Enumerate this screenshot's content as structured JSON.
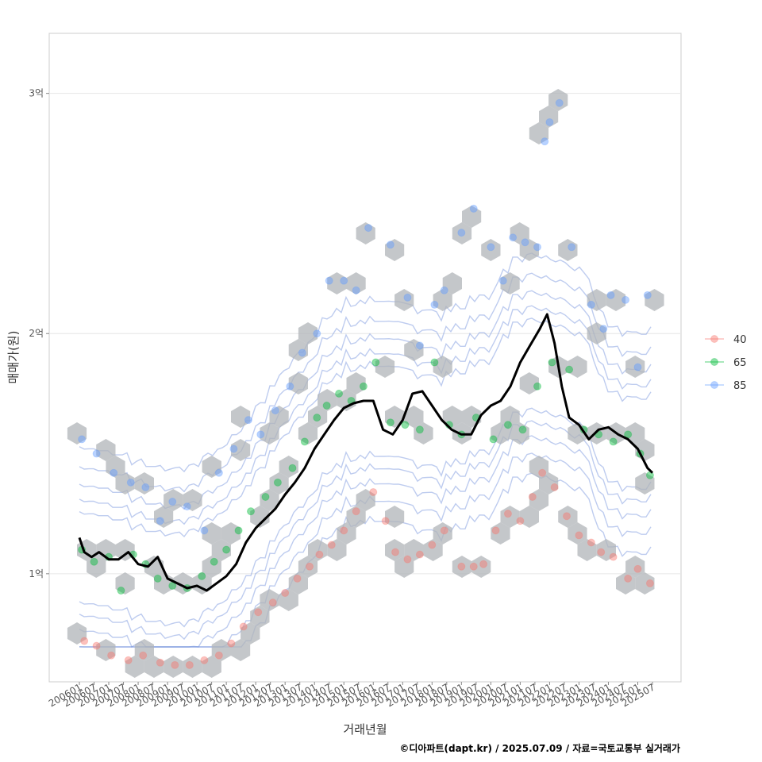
{
  "chart_data": {
    "type": "scatter",
    "xlabel": "거래년월",
    "ylabel": "매매가(원)",
    "caption": "©디아파트(dapt.kr) / 2025.07.09 / 자료=국토교통부 실거래가",
    "x_ticks": [
      "200601",
      "200607",
      "200701",
      "200707",
      "200801",
      "200807",
      "200901",
      "200907",
      "201001",
      "201007",
      "201101",
      "201107",
      "201201",
      "201207",
      "201301",
      "201307",
      "201401",
      "201407",
      "201501",
      "201507",
      "201601",
      "201607",
      "201701",
      "201707",
      "201801",
      "201807",
      "201901",
      "201907",
      "202001",
      "202007",
      "202101",
      "202107",
      "202201",
      "202207",
      "202301",
      "202307",
      "202401",
      "202407",
      "202501",
      "202507"
    ],
    "x_range": [
      "2006-01",
      "2025-07"
    ],
    "y_ticks": [
      {
        "value": 1.0,
        "label": "1억"
      },
      {
        "value": 2.0,
        "label": "2억"
      },
      {
        "value": 3.0,
        "label": "3억"
      }
    ],
    "ylim": [
      0.55,
      3.25
    ],
    "grid": true,
    "legend": {
      "position": "right",
      "entries": [
        {
          "name": "40",
          "color": "#F8766D"
        },
        {
          "name": "65",
          "color": "#00BA38"
        },
        {
          "name": "85",
          "color": "#619CFF"
        }
      ]
    },
    "hex_color": "#b0b4b8",
    "contour_color": "#6f8fdc",
    "line_color": "#000000",
    "series": [
      {
        "name": "40",
        "points": [
          [
            "2006-03",
            0.72
          ],
          [
            "2006-08",
            0.7
          ],
          [
            "2007-02",
            0.66
          ],
          [
            "2007-09",
            0.64
          ],
          [
            "2008-03",
            0.66
          ],
          [
            "2008-10",
            0.63
          ],
          [
            "2009-04",
            0.62
          ],
          [
            "2009-10",
            0.62
          ],
          [
            "2010-04",
            0.64
          ],
          [
            "2010-10",
            0.66
          ],
          [
            "2011-03",
            0.71
          ],
          [
            "2011-08",
            0.78
          ],
          [
            "2012-02",
            0.84
          ],
          [
            "2012-08",
            0.88
          ],
          [
            "2013-01",
            0.92
          ],
          [
            "2013-06",
            0.98
          ],
          [
            "2013-11",
            1.03
          ],
          [
            "2014-03",
            1.08
          ],
          [
            "2014-08",
            1.12
          ],
          [
            "2015-01",
            1.18
          ],
          [
            "2015-06",
            1.26
          ],
          [
            "2016-01",
            1.34
          ],
          [
            "2016-06",
            1.22
          ],
          [
            "2016-10",
            1.09
          ],
          [
            "2017-03",
            1.06
          ],
          [
            "2017-08",
            1.08
          ],
          [
            "2018-01",
            1.12
          ],
          [
            "2018-06",
            1.18
          ],
          [
            "2019-01",
            1.03
          ],
          [
            "2019-06",
            1.03
          ],
          [
            "2019-10",
            1.04
          ],
          [
            "2020-03",
            1.18
          ],
          [
            "2020-08",
            1.25
          ],
          [
            "2021-01",
            1.22
          ],
          [
            "2021-06",
            1.32
          ],
          [
            "2021-10",
            1.42
          ],
          [
            "2022-03",
            1.36
          ],
          [
            "2022-08",
            1.24
          ],
          [
            "2023-01",
            1.16
          ],
          [
            "2023-06",
            1.13
          ],
          [
            "2023-10",
            1.09
          ],
          [
            "2024-03",
            1.07
          ],
          [
            "2024-09",
            0.98
          ],
          [
            "2025-01",
            1.02
          ],
          [
            "2025-06",
            0.96
          ]
        ]
      },
      {
        "name": "65",
        "points": [
          [
            "2006-02",
            1.1
          ],
          [
            "2006-07",
            1.05
          ],
          [
            "2007-01",
            1.07
          ],
          [
            "2007-06",
            0.93
          ],
          [
            "2007-11",
            1.08
          ],
          [
            "2008-04",
            1.04
          ],
          [
            "2008-09",
            0.98
          ],
          [
            "2009-03",
            0.95
          ],
          [
            "2009-09",
            0.94
          ],
          [
            "2010-03",
            0.99
          ],
          [
            "2010-08",
            1.05
          ],
          [
            "2011-01",
            1.1
          ],
          [
            "2011-06",
            1.18
          ],
          [
            "2011-11",
            1.26
          ],
          [
            "2012-05",
            1.32
          ],
          [
            "2012-10",
            1.38
          ],
          [
            "2013-04",
            1.44
          ],
          [
            "2013-09",
            1.55
          ],
          [
            "2014-02",
            1.65
          ],
          [
            "2014-06",
            1.7
          ],
          [
            "2014-11",
            1.75
          ],
          [
            "2015-04",
            1.72
          ],
          [
            "2015-09",
            1.78
          ],
          [
            "2016-02",
            1.88
          ],
          [
            "2016-08",
            1.63
          ],
          [
            "2017-02",
            1.62
          ],
          [
            "2017-08",
            1.6
          ],
          [
            "2018-02",
            1.88
          ],
          [
            "2018-08",
            1.62
          ],
          [
            "2019-01",
            1.58
          ],
          [
            "2019-07",
            1.65
          ],
          [
            "2020-02",
            1.56
          ],
          [
            "2020-08",
            1.62
          ],
          [
            "2021-02",
            1.6
          ],
          [
            "2021-08",
            1.78
          ],
          [
            "2022-02",
            1.88
          ],
          [
            "2022-09",
            1.85
          ],
          [
            "2023-03",
            1.6
          ],
          [
            "2023-09",
            1.58
          ],
          [
            "2024-03",
            1.55
          ],
          [
            "2024-09",
            1.58
          ],
          [
            "2025-02",
            1.5
          ],
          [
            "2025-06",
            1.41
          ]
        ]
      },
      {
        "name": "85",
        "points": [
          [
            "2006-02",
            1.56
          ],
          [
            "2006-08",
            1.5
          ],
          [
            "2007-03",
            1.42
          ],
          [
            "2007-10",
            1.38
          ],
          [
            "2008-04",
            1.36
          ],
          [
            "2008-10",
            1.22
          ],
          [
            "2009-03",
            1.3
          ],
          [
            "2009-09",
            1.28
          ],
          [
            "2010-04",
            1.18
          ],
          [
            "2010-10",
            1.42
          ],
          [
            "2011-04",
            1.52
          ],
          [
            "2011-10",
            1.64
          ],
          [
            "2012-03",
            1.58
          ],
          [
            "2012-09",
            1.68
          ],
          [
            "2013-03",
            1.78
          ],
          [
            "2013-08",
            1.92
          ],
          [
            "2014-02",
            2.0
          ],
          [
            "2014-07",
            2.22
          ],
          [
            "2015-01",
            2.22
          ],
          [
            "2015-06",
            2.18
          ],
          [
            "2015-11",
            2.44
          ],
          [
            "2016-08",
            2.37
          ],
          [
            "2017-03",
            2.15
          ],
          [
            "2017-08",
            1.95
          ],
          [
            "2018-02",
            2.12
          ],
          [
            "2018-06",
            2.18
          ],
          [
            "2019-01",
            2.42
          ],
          [
            "2019-06",
            2.52
          ],
          [
            "2020-01",
            2.36
          ],
          [
            "2020-06",
            2.22
          ],
          [
            "2020-10",
            2.4
          ],
          [
            "2021-03",
            2.38
          ],
          [
            "2021-08",
            2.36
          ],
          [
            "2021-11",
            2.8
          ],
          [
            "2022-01",
            2.88
          ],
          [
            "2022-05",
            2.96
          ],
          [
            "2022-10",
            2.36
          ],
          [
            "2023-06",
            2.12
          ],
          [
            "2023-11",
            2.02
          ],
          [
            "2024-02",
            2.16
          ],
          [
            "2024-08",
            2.14
          ],
          [
            "2025-01",
            1.86
          ],
          [
            "2025-05",
            2.16
          ]
        ]
      },
      {
        "name": "median",
        "points": [
          [
            "2006-01",
            1.15
          ],
          [
            "2006-03",
            1.09
          ],
          [
            "2006-06",
            1.07
          ],
          [
            "2006-09",
            1.09
          ],
          [
            "2007-01",
            1.06
          ],
          [
            "2007-05",
            1.06
          ],
          [
            "2007-09",
            1.09
          ],
          [
            "2008-01",
            1.04
          ],
          [
            "2008-05",
            1.03
          ],
          [
            "2008-09",
            1.07
          ],
          [
            "2009-01",
            0.98
          ],
          [
            "2009-05",
            0.96
          ],
          [
            "2009-09",
            0.94
          ],
          [
            "2010-01",
            0.95
          ],
          [
            "2010-05",
            0.93
          ],
          [
            "2010-09",
            0.96
          ],
          [
            "2011-01",
            0.99
          ],
          [
            "2011-05",
            1.04
          ],
          [
            "2011-09",
            1.13
          ],
          [
            "2012-01",
            1.19
          ],
          [
            "2012-05",
            1.23
          ],
          [
            "2012-09",
            1.27
          ],
          [
            "2013-01",
            1.33
          ],
          [
            "2013-05",
            1.38
          ],
          [
            "2013-09",
            1.44
          ],
          [
            "2014-01",
            1.52
          ],
          [
            "2014-05",
            1.58
          ],
          [
            "2014-09",
            1.64
          ],
          [
            "2015-01",
            1.69
          ],
          [
            "2015-05",
            1.71
          ],
          [
            "2015-09",
            1.72
          ],
          [
            "2016-01",
            1.72
          ],
          [
            "2016-05",
            1.6
          ],
          [
            "2016-09",
            1.58
          ],
          [
            "2017-01",
            1.64
          ],
          [
            "2017-05",
            1.75
          ],
          [
            "2017-09",
            1.76
          ],
          [
            "2018-01",
            1.7
          ],
          [
            "2018-05",
            1.64
          ],
          [
            "2018-09",
            1.6
          ],
          [
            "2019-01",
            1.58
          ],
          [
            "2019-05",
            1.58
          ],
          [
            "2019-09",
            1.66
          ],
          [
            "2020-01",
            1.7
          ],
          [
            "2020-05",
            1.72
          ],
          [
            "2020-09",
            1.78
          ],
          [
            "2021-01",
            1.88
          ],
          [
            "2021-05",
            1.95
          ],
          [
            "2021-09",
            2.02
          ],
          [
            "2021-12",
            2.08
          ],
          [
            "2022-03",
            1.96
          ],
          [
            "2022-06",
            1.78
          ],
          [
            "2022-09",
            1.65
          ],
          [
            "2023-01",
            1.62
          ],
          [
            "2023-05",
            1.56
          ],
          [
            "2023-09",
            1.6
          ],
          [
            "2024-01",
            1.61
          ],
          [
            "2024-05",
            1.58
          ],
          [
            "2024-09",
            1.56
          ],
          [
            "2025-01",
            1.52
          ],
          [
            "2025-05",
            1.44
          ],
          [
            "2025-07",
            1.42
          ]
        ]
      }
    ]
  }
}
